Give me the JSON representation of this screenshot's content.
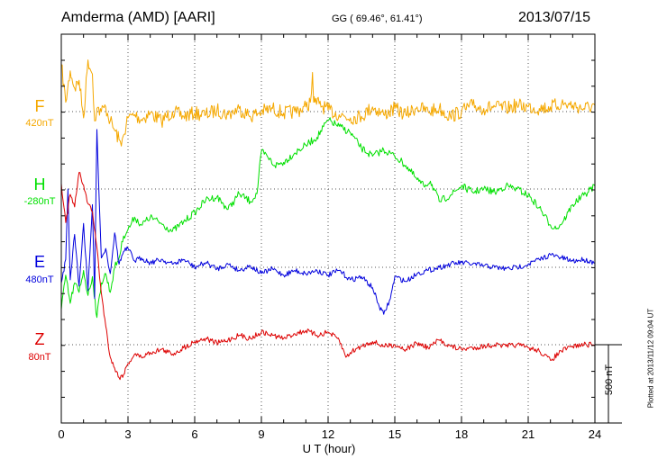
{
  "header": {
    "station": "Amderma (AMD)  [AARI]",
    "coords": "GG ( 69.46°,  61.41°)",
    "date": "2013/07/15"
  },
  "footer": {
    "plotted": "Plotted at 2013/11/12 09:04 UT",
    "scale_label": "500 nT"
  },
  "chart_data": {
    "type": "line",
    "xlabel": "U T (hour)",
    "xlim": [
      0,
      24
    ],
    "xticks": [
      "0",
      "3",
      "6",
      "9",
      "12",
      "15",
      "18",
      "21",
      "24"
    ],
    "scale_bar_nT": 500,
    "grid": "dotted",
    "series": [
      {
        "name": "F",
        "baseline_label": "420nT",
        "color": "#f5a800",
        "baseline_nT": 420,
        "x": [
          0,
          0.2,
          0.4,
          0.6,
          0.8,
          1.0,
          1.2,
          1.4,
          1.5,
          1.6,
          1.8,
          2.0,
          2.2,
          2.4,
          2.6,
          2.7,
          2.8,
          3.0,
          3.3,
          3.6,
          4.0,
          4.5,
          5.0,
          5.5,
          6.0,
          6.5,
          7.0,
          7.5,
          8.0,
          8.5,
          9.0,
          9.5,
          10.0,
          10.5,
          11.0,
          11.2,
          11.3,
          11.35,
          11.4,
          11.6,
          12.0,
          12.5,
          13.0,
          13.5,
          14.0,
          14.5,
          15.0,
          15.5,
          16.0,
          16.5,
          17.0,
          17.5,
          18.0,
          18.5,
          19.0,
          19.5,
          20.0,
          20.5,
          21.0,
          21.5,
          22.0,
          22.5,
          23.0,
          23.5,
          24.0
        ],
        "y": [
          300,
          60,
          260,
          150,
          200,
          -40,
          330,
          240,
          -60,
          20,
          0,
          30,
          -60,
          -120,
          -180,
          -220,
          -150,
          -40,
          -20,
          -50,
          -10,
          -60,
          0,
          -30,
          -10,
          -20,
          10,
          -20,
          20,
          -30,
          0,
          20,
          -10,
          0,
          30,
          60,
          250,
          60,
          60,
          50,
          10,
          -20,
          -40,
          -30,
          30,
          -20,
          20,
          -20,
          30,
          0,
          20,
          -30,
          0,
          40,
          20,
          30,
          20,
          40,
          30,
          20,
          30,
          50,
          40,
          20,
          40
        ]
      },
      {
        "name": "H",
        "baseline_label": "-280nT",
        "color": "#00e000",
        "baseline_nT": -280,
        "x": [
          0,
          0.2,
          0.4,
          0.6,
          0.8,
          1.0,
          1.2,
          1.4,
          1.6,
          1.8,
          2.0,
          2.2,
          2.4,
          2.6,
          2.8,
          3.0,
          3.3,
          3.6,
          4.0,
          4.5,
          5.0,
          5.5,
          6.0,
          6.5,
          7.0,
          7.5,
          8.0,
          8.5,
          8.8,
          9.0,
          9.3,
          9.6,
          10.0,
          10.5,
          11.0,
          11.5,
          12.0,
          12.5,
          13.0,
          13.5,
          14.0,
          14.5,
          15.0,
          15.5,
          16.0,
          16.3,
          16.6,
          17.0,
          17.5,
          18.0,
          18.5,
          19.0,
          19.5,
          20.0,
          20.5,
          21.0,
          21.5,
          22.0,
          22.3,
          22.6,
          23.0,
          23.5,
          24.0
        ],
        "y": [
          -770,
          -550,
          -730,
          -600,
          -660,
          -520,
          -680,
          -560,
          -820,
          -600,
          -540,
          -660,
          -500,
          -440,
          -300,
          -260,
          -180,
          -230,
          -180,
          -220,
          -270,
          -210,
          -150,
          -70,
          -50,
          -130,
          -30,
          -80,
          -30,
          240,
          200,
          150,
          170,
          230,
          280,
          330,
          440,
          400,
          360,
          260,
          210,
          250,
          210,
          150,
          60,
          20,
          50,
          -80,
          -40,
          20,
          -20,
          0,
          -20,
          20,
          0,
          -40,
          -120,
          -230,
          -250,
          -200,
          -100,
          -40,
          20
        ]
      },
      {
        "name": "E",
        "baseline_label": "480nT",
        "color": "#0000dd",
        "baseline_nT": 480,
        "x": [
          0,
          0.2,
          0.3,
          0.4,
          0.6,
          0.8,
          1.0,
          1.2,
          1.4,
          1.5,
          1.6,
          1.8,
          2.0,
          2.2,
          2.4,
          2.6,
          2.8,
          3.0,
          3.3,
          3.6,
          4.0,
          4.5,
          5.0,
          5.5,
          6.0,
          6.5,
          7.0,
          7.5,
          8.0,
          8.5,
          9.0,
          9.5,
          10.0,
          10.5,
          11.0,
          11.5,
          12.0,
          12.5,
          13.0,
          13.5,
          14.0,
          14.3,
          14.5,
          14.8,
          15.0,
          15.5,
          16.0,
          16.5,
          17.0,
          17.5,
          18.0,
          18.5,
          19.0,
          19.5,
          20.0,
          20.5,
          21.0,
          21.5,
          22.0,
          22.5,
          23.0,
          23.5,
          24.0
        ],
        "y": [
          -100,
          50,
          500,
          -80,
          210,
          -120,
          280,
          -150,
          400,
          -200,
          880,
          60,
          120,
          -40,
          220,
          20,
          100,
          120,
          40,
          60,
          30,
          50,
          20,
          50,
          0,
          30,
          -10,
          20,
          -20,
          10,
          -40,
          -10,
          -50,
          -20,
          -40,
          -20,
          -50,
          -20,
          -80,
          -60,
          -130,
          -250,
          -300,
          -200,
          -60,
          -90,
          -40,
          -20,
          0,
          20,
          30,
          20,
          10,
          0,
          -10,
          0,
          20,
          50,
          80,
          60,
          40,
          50,
          30
        ]
      },
      {
        "name": "Z",
        "baseline_label": "80nT",
        "color": "#dd0000",
        "baseline_nT": 80,
        "x": [
          0,
          0.2,
          0.4,
          0.6,
          0.8,
          1.0,
          1.2,
          1.4,
          1.6,
          1.8,
          2.0,
          2.2,
          2.4,
          2.6,
          2.8,
          3.0,
          3.3,
          3.6,
          4.0,
          4.5,
          5.0,
          5.5,
          6.0,
          6.5,
          7.0,
          7.5,
          8.0,
          8.5,
          9.0,
          9.5,
          10.0,
          10.5,
          11.0,
          11.5,
          12.0,
          12.5,
          12.8,
          13.0,
          13.5,
          14.0,
          14.5,
          15.0,
          15.5,
          16.0,
          16.5,
          17.0,
          17.5,
          18.0,
          18.5,
          19.0,
          19.5,
          20.0,
          20.5,
          21.0,
          21.5,
          22.0,
          22.5,
          23.0,
          23.5,
          24.0
        ],
        "y": [
          1030,
          780,
          960,
          880,
          1100,
          1020,
          900,
          850,
          620,
          330,
          120,
          -80,
          -150,
          -210,
          -190,
          -120,
          -60,
          -80,
          -50,
          -30,
          -60,
          -20,
          20,
          40,
          10,
          30,
          60,
          40,
          80,
          60,
          40,
          70,
          90,
          60,
          80,
          30,
          -80,
          -50,
          -10,
          20,
          -10,
          0,
          -30,
          10,
          -20,
          30,
          -10,
          -30,
          -20,
          -10,
          0,
          -10,
          0,
          -20,
          -40,
          -100,
          -40,
          -10,
          0,
          0
        ]
      }
    ]
  }
}
